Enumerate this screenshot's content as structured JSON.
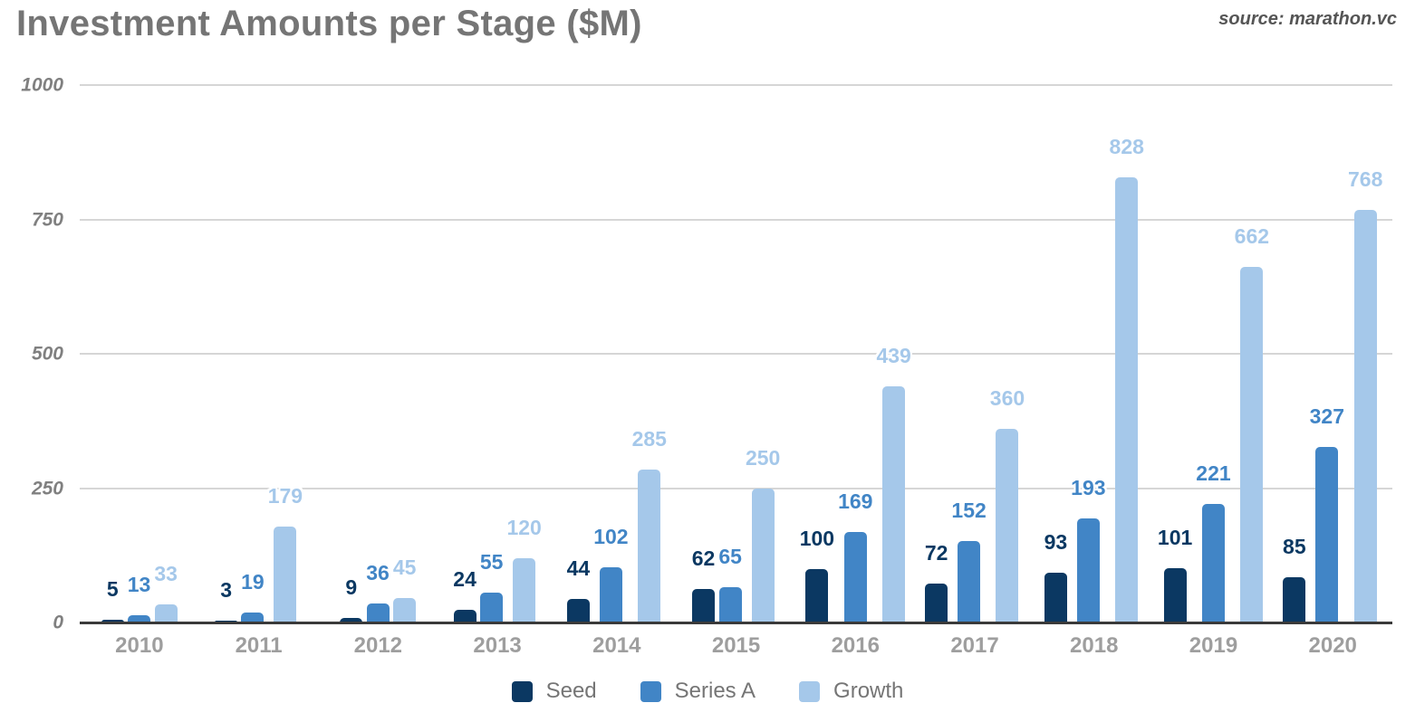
{
  "header": {
    "title": "Investment Amounts per Stage ($M)",
    "source": "source: marathon.vc"
  },
  "chart_data": {
    "type": "bar",
    "title": "Investment Amounts per Stage ($M)",
    "source_note": "source: marathon.vc",
    "categories": [
      "2010",
      "2011",
      "2012",
      "2013",
      "2014",
      "2015",
      "2016",
      "2017",
      "2018",
      "2019",
      "2020"
    ],
    "series": [
      {
        "name": "Seed",
        "color": "#0b3862",
        "values": [
          5,
          3,
          9,
          24,
          44,
          62,
          100,
          72,
          93,
          101,
          85
        ]
      },
      {
        "name": "Series A",
        "color": "#4185c6",
        "values": [
          13,
          19,
          36,
          55,
          102,
          65,
          169,
          152,
          193,
          221,
          327
        ]
      },
      {
        "name": "Growth",
        "color": "#a5c8ea",
        "values": [
          33,
          179,
          45,
          120,
          285,
          250,
          439,
          360,
          828,
          662,
          768
        ]
      }
    ],
    "y_ticks": [
      0,
      250,
      500,
      750,
      1000
    ],
    "ylim": [
      0,
      1000
    ],
    "xlabel": "",
    "ylabel": "",
    "grid": true,
    "value_labels": true,
    "legend_position": "bottom"
  },
  "colors": {
    "background": "#ffffff",
    "gridline": "#d6d6d6",
    "axis_line": "#3a3a3a",
    "title_text": "#757575",
    "tick_text": "#808080",
    "category_text": "#9e9e9e",
    "legend_text": "#757575"
  }
}
